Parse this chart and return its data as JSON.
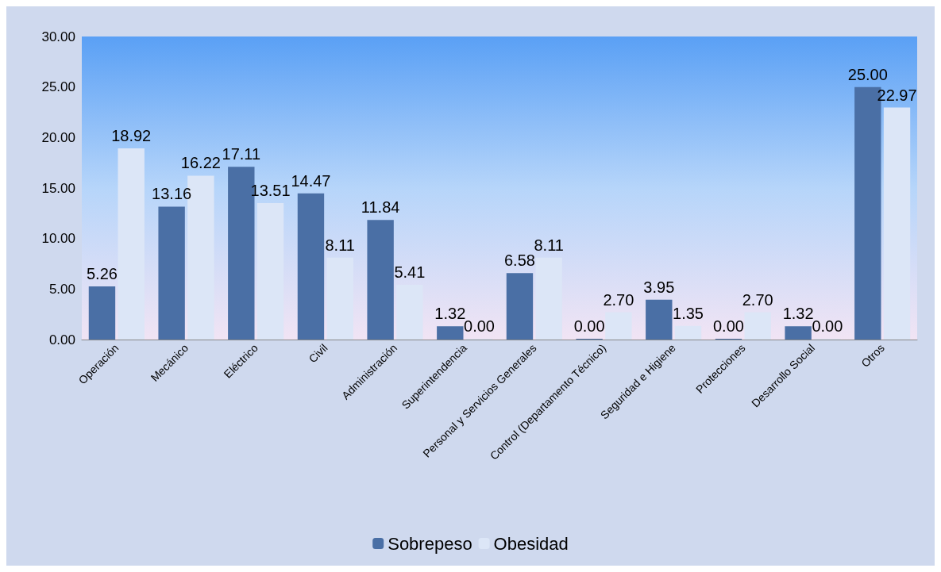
{
  "chart_data": {
    "type": "bar",
    "categories": [
      "Operación",
      "Mecánico",
      "Eléctrico",
      "Civil",
      "Administración",
      "Superintendencia",
      "Personal y Servicios Generales",
      "Control (Departamento Técnico)",
      "Seguridad e Higiene",
      "Protecciones",
      "Desarrollo Social",
      "Otros"
    ],
    "series": [
      {
        "name": "Sobrepeso",
        "color": "#4a6fa5",
        "values": [
          5.26,
          13.16,
          17.11,
          14.47,
          11.84,
          1.32,
          6.58,
          0.0,
          3.95,
          0.0,
          1.32,
          25.0
        ],
        "value_labels": [
          "5.26",
          "13.16",
          "17.11",
          "14.47",
          "11.84",
          "1.32",
          "6.58",
          "0.00",
          "3.95",
          "0.00",
          "1.32",
          "25.00"
        ]
      },
      {
        "name": "Obesidad",
        "color": "#dce6f7",
        "values": [
          18.92,
          16.22,
          13.51,
          8.11,
          5.41,
          0.0,
          8.11,
          2.7,
          1.35,
          2.7,
          0.0,
          22.97
        ],
        "value_labels": [
          "18.92",
          "16.22",
          "13.51",
          "8.11",
          "5.41",
          "0.00",
          "8.11",
          "2.70",
          "1.35",
          "2.70",
          "0.00",
          "22.97"
        ]
      }
    ],
    "ylim": [
      0,
      30
    ],
    "yticks": [
      {
        "value": 0,
        "label": "0.00"
      },
      {
        "value": 5,
        "label": "5.00"
      },
      {
        "value": 10,
        "label": "10.00"
      },
      {
        "value": 15,
        "label": "15.00"
      },
      {
        "value": 20,
        "label": "20.00"
      },
      {
        "value": 25,
        "label": "25.00"
      },
      {
        "value": 30,
        "label": "30.00"
      }
    ],
    "legend": "bottom",
    "grid": false
  }
}
